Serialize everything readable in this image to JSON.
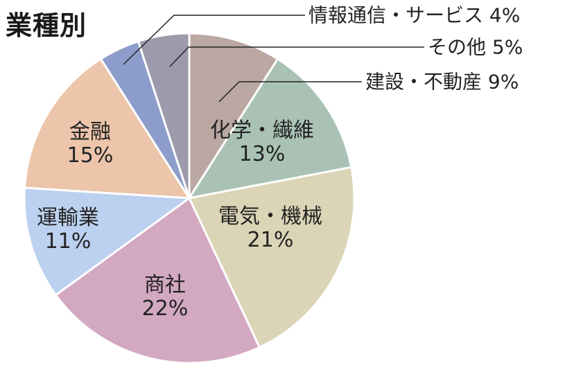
{
  "chart_data": {
    "type": "pie",
    "title": "業種別",
    "slices": [
      {
        "label": "建設・不動産",
        "value": 9,
        "display": "9%",
        "color": "#bba8a3",
        "label_position": "outside"
      },
      {
        "label": "化学・繊維",
        "value": 13,
        "display": "13%",
        "color": "#a9c2b5",
        "label_position": "inside"
      },
      {
        "label": "電気・機械",
        "value": 21,
        "display": "21%",
        "color": "#dbd4b7",
        "label_position": "inside"
      },
      {
        "label": "商社",
        "value": 22,
        "display": "22%",
        "color": "#d3a8c1",
        "label_position": "inside"
      },
      {
        "label": "運輸業",
        "value": 11,
        "display": "11%",
        "color": "#bcd1ef",
        "label_position": "inside"
      },
      {
        "label": "金融",
        "value": 15,
        "display": "15%",
        "color": "#ecc5ab",
        "label_position": "inside"
      },
      {
        "label": "情報通信・サービス",
        "value": 4,
        "display": "4%",
        "color": "#8d9dcb",
        "label_position": "outside"
      },
      {
        "label": "その他",
        "value": 5,
        "display": "5%",
        "color": "#9d9aab",
        "label_position": "outside"
      }
    ]
  }
}
